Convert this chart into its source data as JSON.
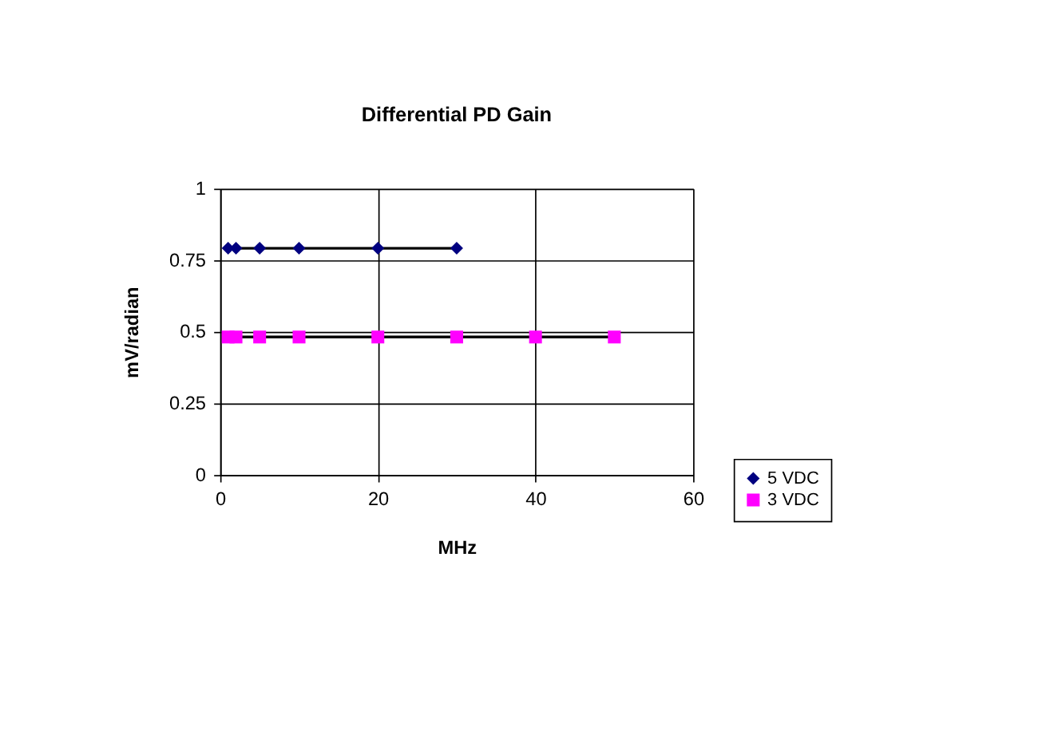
{
  "chart_data": {
    "type": "line",
    "title": "Differential PD Gain",
    "xlabel": "MHz",
    "ylabel": "mV/radian",
    "xlim": [
      0,
      60
    ],
    "xticks": [
      0,
      20,
      40,
      60
    ],
    "ylim": [
      0,
      1
    ],
    "yticks": [
      0,
      0.25,
      0.5,
      0.75,
      1
    ],
    "grid": true,
    "legend": "right",
    "series": [
      {
        "name": "5 VDC",
        "color": "#000080",
        "marker": "diamond",
        "x": [
          1,
          2,
          5,
          10,
          20,
          30
        ],
        "values": [
          0.792,
          0.792,
          0.792,
          0.792,
          0.792,
          0.792
        ]
      },
      {
        "name": "3 VDC",
        "color": "#ff00ff",
        "marker": "square",
        "x": [
          1,
          2,
          5,
          10,
          20,
          30,
          40,
          50
        ],
        "values": [
          0.482,
          0.482,
          0.482,
          0.482,
          0.482,
          0.482,
          0.482,
          0.482
        ]
      }
    ]
  }
}
